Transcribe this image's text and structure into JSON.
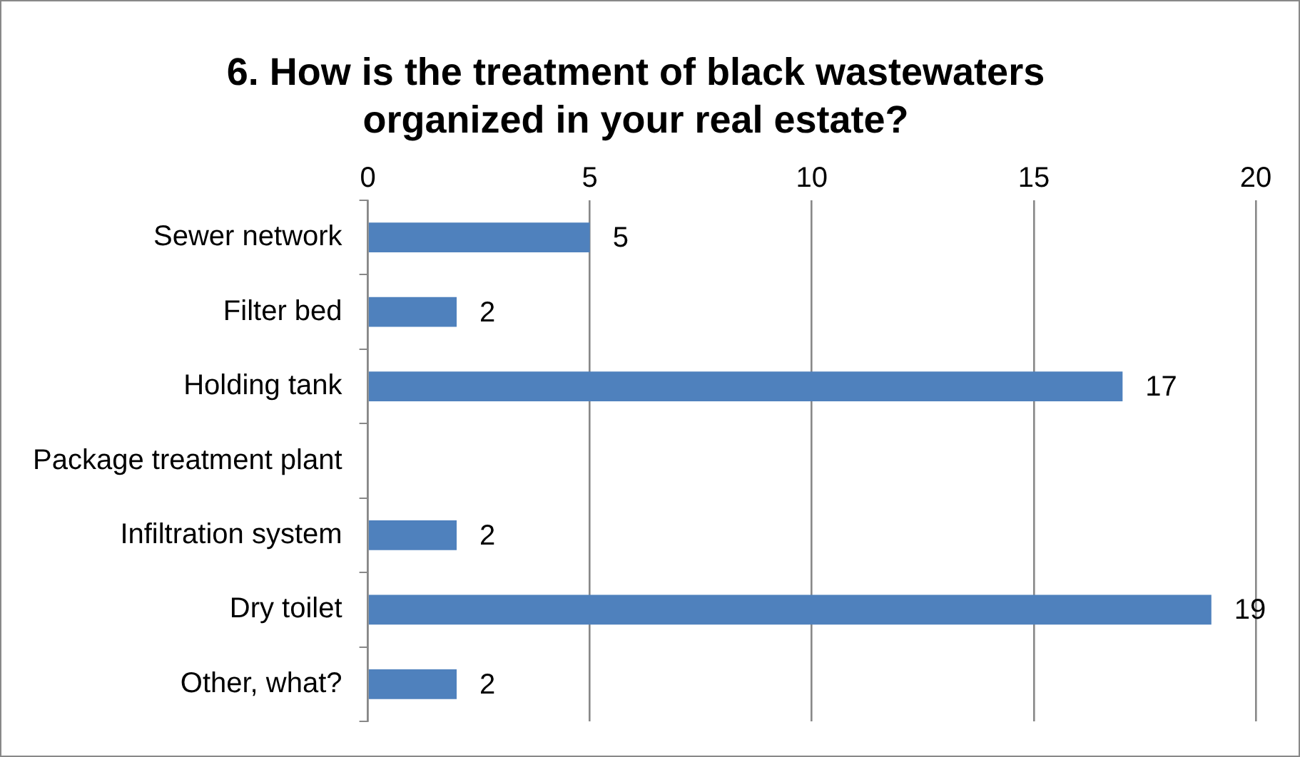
{
  "chart_data": {
    "type": "bar",
    "orientation": "horizontal",
    "title": "6. How is the treatment of black wastewaters organized in your real estate?",
    "categories": [
      "Sewer network",
      "Filter bed",
      "Holding tank",
      "Package treatment plant",
      "Infiltration system",
      "Dry toilet",
      "Other, what?"
    ],
    "values": [
      5,
      2,
      17,
      null,
      2,
      19,
      2
    ],
    "color": "#4f81bd",
    "xlim": [
      0,
      20
    ],
    "xticks": [
      0,
      5,
      10,
      15,
      20
    ],
    "grid": "x",
    "data_labels": true,
    "legend": false
  }
}
